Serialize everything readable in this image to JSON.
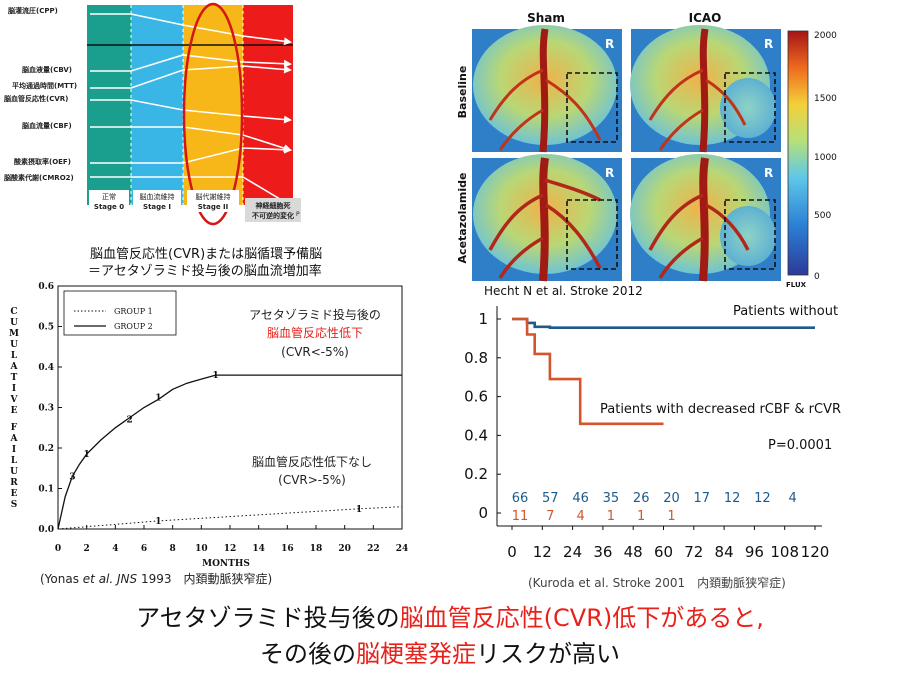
{
  "colors": {
    "accent_red": "#e8211a",
    "navy": "#1f5a8c",
    "orange": "#d4552c",
    "stage0": "#1a9f8e",
    "stage1": "#3ab6e6",
    "stage2": "#f7b718",
    "stage3": "#ee1b1b"
  },
  "stage_diagram": {
    "params": [
      "脳灌流圧(CPP)",
      "脳血液量(CBV)",
      "平均通過時間(MTT)",
      "脳血管反応性(CVR)",
      "脳血流量(CBF)",
      "酸素摂取率(OEF)",
      "脳酸素代謝(CMRO2)"
    ],
    "stages": [
      {
        "line1": "正常",
        "line2": "Stage 0"
      },
      {
        "line1": "脳血流維持",
        "line2": "Stage I"
      },
      {
        "line1": "脳代謝維持",
        "line2": "Stage II"
      },
      {
        "line1": "神経細胞死",
        "line2": "不可逆的変化"
      }
    ],
    "axis_end": "P"
  },
  "cvr_definition": {
    "line1": "脳血管反応性(CVR)または脳循環予備脳",
    "line2": "＝アセタゾラミド投与後の脳血流増加率"
  },
  "flux_maps": {
    "col_labels": [
      "Sham",
      "ICAO"
    ],
    "row_labels": [
      "Baseline",
      "Acetazolamide"
    ],
    "side_marker": "R",
    "colorbar_ticks": [
      "2000",
      "1500",
      "1000",
      "500",
      "0"
    ],
    "colorbar_label": "FLUX",
    "citation": "Hecht N et al. Stroke 2012"
  },
  "chart_data": [
    {
      "type": "line",
      "ylabel": "CUMULATIVE FAILURES",
      "xlabel": "MONTHS",
      "xlim": [
        0,
        24
      ],
      "ylim": [
        0,
        0.6
      ],
      "xticks": [
        0,
        2,
        4,
        6,
        8,
        10,
        12,
        14,
        16,
        18,
        20,
        22,
        24
      ],
      "yticks": [
        0,
        0.1,
        0.2,
        0.3,
        0.4,
        0.5,
        0.6
      ],
      "legend_position": "top-left",
      "series": [
        {
          "name": "GROUP 1",
          "style": "dotted",
          "x": [
            0,
            7,
            21,
            24
          ],
          "y": [
            0,
            0.02,
            0.05,
            0.055
          ],
          "event_marks": [
            {
              "x": 7,
              "y": 0.02,
              "label": "1"
            },
            {
              "x": 21,
              "y": 0.05,
              "label": "1"
            }
          ]
        },
        {
          "name": "GROUP 2",
          "style": "solid",
          "x": [
            0,
            0.5,
            1,
            1.5,
            2,
            3,
            4,
            5,
            6,
            7,
            8,
            9,
            10,
            11,
            24
          ],
          "y": [
            0,
            0.08,
            0.13,
            0.16,
            0.185,
            0.22,
            0.25,
            0.275,
            0.3,
            0.32,
            0.345,
            0.36,
            0.37,
            0.38,
            0.38
          ],
          "event_marks": [
            {
              "x": 1,
              "y": 0.13,
              "label": "3"
            },
            {
              "x": 2,
              "y": 0.185,
              "label": "1"
            },
            {
              "x": 5,
              "y": 0.27,
              "label": "2"
            },
            {
              "x": 7,
              "y": 0.325,
              "label": "1"
            },
            {
              "x": 11,
              "y": 0.38,
              "label": "1"
            }
          ]
        }
      ],
      "annotations": {
        "low_cvr_line1": "アセタゾラミド投与後の",
        "low_cvr_line2": "脳血管反応性低下",
        "low_cvr_line3": "(CVR<-5%)",
        "normal_line1": "脳血管反応性低下なし",
        "normal_line2": "(CVR>-5%)"
      },
      "citation_a": "(Yonas ",
      "citation_b": "et al. JNS",
      "citation_c": " 1993　内頚動脈狭窄症)"
    },
    {
      "type": "line",
      "xlim": [
        0,
        120
      ],
      "ylim": [
        0,
        1
      ],
      "xticks": [
        0,
        12,
        24,
        36,
        48,
        60,
        72,
        84,
        96,
        108,
        120
      ],
      "yticks": [
        0,
        0.2,
        0.4,
        0.6,
        0.8,
        1
      ],
      "xtick_labels": [
        "0",
        "12",
        "24",
        "36",
        "48",
        "60",
        "72",
        "84",
        "96",
        "108",
        "120"
      ],
      "ytick_labels": [
        "0",
        "0.2",
        "0.4",
        "0.6",
        "0.8",
        "1"
      ],
      "series": [
        {
          "name": "Patients without",
          "x": [
            0,
            6,
            6,
            9,
            9,
            15,
            15,
            120
          ],
          "y": [
            1,
            1,
            0.98,
            0.98,
            0.96,
            0.96,
            0.955,
            0.955
          ]
        },
        {
          "name": "Patients with decreased rCBF & rCVR",
          "x": [
            0,
            6,
            6,
            9,
            9,
            15,
            15,
            27,
            27,
            60
          ],
          "y": [
            1,
            1,
            0.92,
            0.92,
            0.82,
            0.82,
            0.69,
            0.69,
            0.46,
            0.46
          ]
        }
      ],
      "p_value": "P=0.0001",
      "at_risk": {
        "without": [
          "66",
          "57",
          "46",
          "35",
          "26",
          "20",
          "17",
          "12",
          "12",
          "4"
        ],
        "with": [
          "11",
          "7",
          "4",
          "1",
          "1",
          "1"
        ]
      },
      "citation": "(Kuroda et al. Stroke 2001　内頚動脈狭窄症)"
    }
  ],
  "conclusion": {
    "l1a": "アセタゾラミド投与後の",
    "l1b": "脳血管反応性(CVR)低下があると,",
    "l2a": "その後の",
    "l2b": "脳梗塞発症",
    "l2c": "リスクが高い"
  }
}
